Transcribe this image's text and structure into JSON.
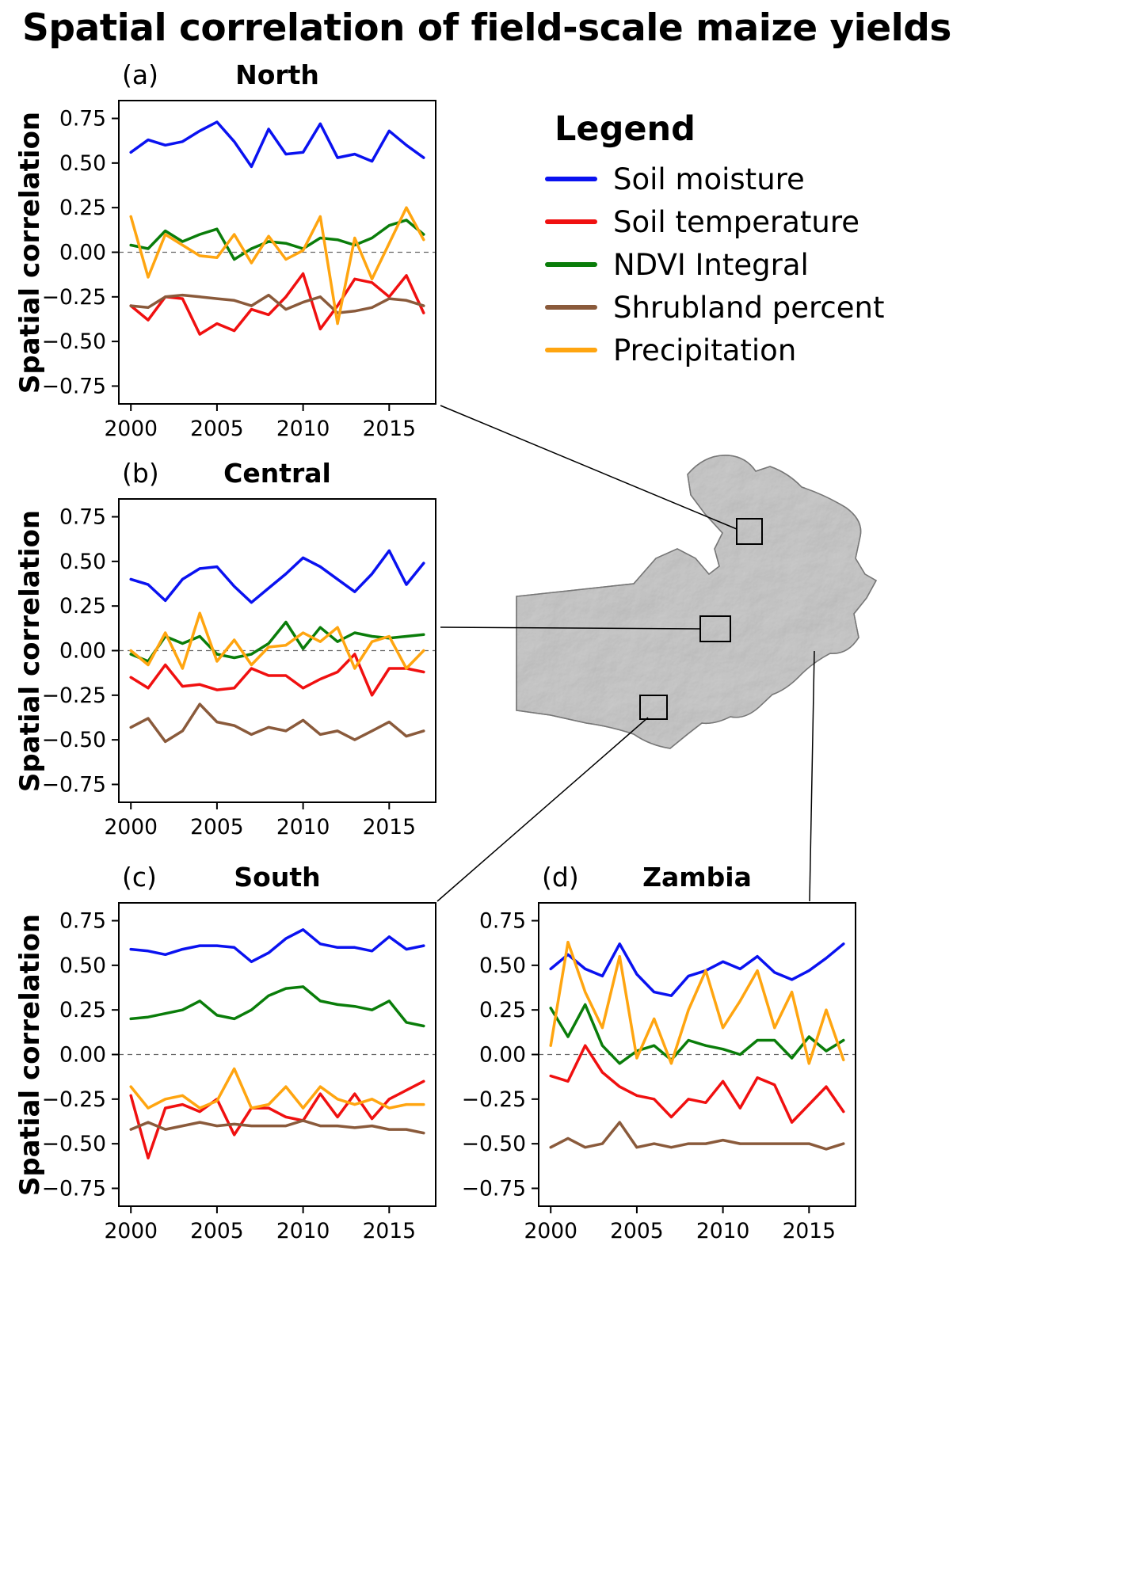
{
  "figure_title": "Spatial correlation of field-scale maize yields",
  "legend": {
    "title": "Legend",
    "items": [
      {
        "label": "Soil moisture",
        "color": "#0a12f0"
      },
      {
        "label": "Soil temperature",
        "color": "#f01010"
      },
      {
        "label": "NDVI Integral",
        "color": "#0a7d0a"
      },
      {
        "label": "Shrubland percent",
        "color": "#8a5a3b"
      },
      {
        "label": "Precipitation",
        "color": "#ffa510"
      }
    ]
  },
  "axes": {
    "ylabel": "Spatial correlation",
    "yticks": [
      0.75,
      0.5,
      0.25,
      0.0,
      -0.25,
      -0.5,
      -0.75
    ],
    "xticks": [
      2000,
      2005,
      2010,
      2015
    ],
    "ylim": [
      -0.85,
      0.85
    ],
    "xlim": [
      1999.3,
      2017.7
    ],
    "zero_line": 0
  },
  "map": {
    "country": "Zambia",
    "fill_color": "#c9c9c9",
    "region_markers": [
      "north",
      "central",
      "south"
    ]
  },
  "chart_data": [
    {
      "type": "line",
      "panel_label": "(a)",
      "title": "North",
      "ylabel": "Spatial correlation",
      "x": [
        2000,
        2001,
        2002,
        2003,
        2004,
        2005,
        2006,
        2007,
        2008,
        2009,
        2010,
        2011,
        2012,
        2013,
        2014,
        2015,
        2016,
        2017
      ],
      "series": [
        {
          "name": "Soil moisture",
          "values": [
            0.56,
            0.63,
            0.6,
            0.62,
            0.68,
            0.73,
            0.62,
            0.48,
            0.69,
            0.55,
            0.56,
            0.72,
            0.53,
            0.55,
            0.51,
            0.68,
            0.6,
            0.53
          ]
        },
        {
          "name": "Soil temperature",
          "values": [
            -0.3,
            -0.38,
            -0.25,
            -0.26,
            -0.46,
            -0.4,
            -0.44,
            -0.32,
            -0.35,
            -0.25,
            -0.12,
            -0.43,
            -0.3,
            -0.15,
            -0.17,
            -0.25,
            -0.13,
            -0.34
          ]
        },
        {
          "name": "NDVI Integral",
          "values": [
            0.04,
            0.02,
            0.12,
            0.06,
            0.1,
            0.13,
            -0.04,
            0.02,
            0.06,
            0.05,
            0.02,
            0.08,
            0.07,
            0.04,
            0.08,
            0.15,
            0.18,
            0.1
          ]
        },
        {
          "name": "Shrubland percent",
          "values": [
            -0.3,
            -0.31,
            -0.25,
            -0.24,
            -0.25,
            -0.26,
            -0.27,
            -0.3,
            -0.24,
            -0.32,
            -0.28,
            -0.25,
            -0.34,
            -0.33,
            -0.31,
            -0.26,
            -0.27,
            -0.3
          ]
        },
        {
          "name": "Precipitation",
          "values": [
            0.2,
            -0.14,
            0.1,
            0.04,
            -0.02,
            -0.03,
            0.1,
            -0.06,
            0.09,
            -0.04,
            0.01,
            0.2,
            -0.4,
            0.08,
            -0.15,
            0.05,
            0.25,
            0.07
          ]
        }
      ]
    },
    {
      "type": "line",
      "panel_label": "(b)",
      "title": "Central",
      "ylabel": "Spatial correlation",
      "x": [
        2000,
        2001,
        2002,
        2003,
        2004,
        2005,
        2006,
        2007,
        2008,
        2009,
        2010,
        2011,
        2012,
        2013,
        2014,
        2015,
        2016,
        2017
      ],
      "series": [
        {
          "name": "Soil moisture",
          "values": [
            0.4,
            0.37,
            0.28,
            0.4,
            0.46,
            0.47,
            0.36,
            0.27,
            0.35,
            0.43,
            0.52,
            0.47,
            0.4,
            0.33,
            0.43,
            0.56,
            0.37,
            0.49
          ]
        },
        {
          "name": "Soil temperature",
          "values": [
            -0.15,
            -0.21,
            -0.08,
            -0.2,
            -0.19,
            -0.22,
            -0.21,
            -0.1,
            -0.14,
            -0.14,
            -0.21,
            -0.16,
            -0.12,
            -0.02,
            -0.25,
            -0.1,
            -0.1,
            -0.12
          ]
        },
        {
          "name": "NDVI Integral",
          "values": [
            -0.02,
            -0.06,
            0.08,
            0.04,
            0.08,
            -0.02,
            -0.04,
            -0.02,
            0.04,
            0.16,
            0.01,
            0.13,
            0.05,
            0.1,
            0.08,
            0.07,
            0.08,
            0.09
          ]
        },
        {
          "name": "Shrubland percent",
          "values": [
            -0.43,
            -0.38,
            -0.51,
            -0.45,
            -0.3,
            -0.4,
            -0.42,
            -0.47,
            -0.43,
            -0.45,
            -0.39,
            -0.47,
            -0.45,
            -0.5,
            -0.45,
            -0.4,
            -0.48,
            -0.45
          ]
        },
        {
          "name": "Precipitation",
          "values": [
            0.0,
            -0.08,
            0.1,
            -0.1,
            0.21,
            -0.06,
            0.06,
            -0.08,
            0.02,
            0.03,
            0.1,
            0.05,
            0.13,
            -0.1,
            0.05,
            0.08,
            -0.1,
            0.0
          ]
        }
      ]
    },
    {
      "type": "line",
      "panel_label": "(c)",
      "title": "South",
      "ylabel": "Spatial correlation",
      "x": [
        2000,
        2001,
        2002,
        2003,
        2004,
        2005,
        2006,
        2007,
        2008,
        2009,
        2010,
        2011,
        2012,
        2013,
        2014,
        2015,
        2016,
        2017
      ],
      "series": [
        {
          "name": "Soil moisture",
          "values": [
            0.59,
            0.58,
            0.56,
            0.59,
            0.61,
            0.61,
            0.6,
            0.52,
            0.57,
            0.65,
            0.7,
            0.62,
            0.6,
            0.6,
            0.58,
            0.66,
            0.59,
            0.61
          ]
        },
        {
          "name": "Soil temperature",
          "values": [
            -0.23,
            -0.58,
            -0.3,
            -0.28,
            -0.32,
            -0.25,
            -0.45,
            -0.3,
            -0.3,
            -0.35,
            -0.37,
            -0.22,
            -0.35,
            -0.22,
            -0.36,
            -0.25,
            -0.2,
            -0.15
          ]
        },
        {
          "name": "NDVI Integral",
          "values": [
            0.2,
            0.21,
            0.23,
            0.25,
            0.3,
            0.22,
            0.2,
            0.25,
            0.33,
            0.37,
            0.38,
            0.3,
            0.28,
            0.27,
            0.25,
            0.3,
            0.18,
            0.16
          ]
        },
        {
          "name": "Shrubland percent",
          "values": [
            -0.42,
            -0.38,
            -0.42,
            -0.4,
            -0.38,
            -0.4,
            -0.39,
            -0.4,
            -0.4,
            -0.4,
            -0.37,
            -0.4,
            -0.4,
            -0.41,
            -0.4,
            -0.42,
            -0.42,
            -0.44
          ]
        },
        {
          "name": "Precipitation",
          "values": [
            -0.18,
            -0.3,
            -0.25,
            -0.23,
            -0.3,
            -0.26,
            -0.08,
            -0.3,
            -0.28,
            -0.18,
            -0.3,
            -0.18,
            -0.25,
            -0.28,
            -0.25,
            -0.3,
            -0.28,
            -0.28
          ]
        }
      ]
    },
    {
      "type": "line",
      "panel_label": "(d)",
      "title": "Zambia",
      "ylabel": "",
      "x": [
        2000,
        2001,
        2002,
        2003,
        2004,
        2005,
        2006,
        2007,
        2008,
        2009,
        2010,
        2011,
        2012,
        2013,
        2014,
        2015,
        2016,
        2017
      ],
      "series": [
        {
          "name": "Soil moisture",
          "values": [
            0.48,
            0.56,
            0.48,
            0.44,
            0.62,
            0.45,
            0.35,
            0.33,
            0.44,
            0.47,
            0.52,
            0.48,
            0.55,
            0.46,
            0.42,
            0.47,
            0.54,
            0.62
          ]
        },
        {
          "name": "Soil temperature",
          "values": [
            -0.12,
            -0.15,
            0.05,
            -0.1,
            -0.18,
            -0.23,
            -0.25,
            -0.35,
            -0.25,
            -0.27,
            -0.15,
            -0.3,
            -0.13,
            -0.17,
            -0.38,
            -0.28,
            -0.18,
            -0.32
          ]
        },
        {
          "name": "NDVI Integral",
          "values": [
            0.26,
            0.1,
            0.28,
            0.05,
            -0.05,
            0.02,
            0.05,
            -0.03,
            0.08,
            0.05,
            0.03,
            0.0,
            0.08,
            0.08,
            -0.02,
            0.1,
            0.02,
            0.08
          ]
        },
        {
          "name": "Shrubland percent",
          "values": [
            -0.52,
            -0.47,
            -0.52,
            -0.5,
            -0.38,
            -0.52,
            -0.5,
            -0.52,
            -0.5,
            -0.5,
            -0.48,
            -0.5,
            -0.5,
            -0.5,
            -0.5,
            -0.5,
            -0.53,
            -0.5
          ]
        },
        {
          "name": "Precipitation",
          "values": [
            0.05,
            0.63,
            0.35,
            0.15,
            0.55,
            -0.02,
            0.2,
            -0.05,
            0.25,
            0.47,
            0.15,
            0.3,
            0.47,
            0.15,
            0.35,
            -0.05,
            0.25,
            -0.03
          ]
        }
      ]
    }
  ]
}
